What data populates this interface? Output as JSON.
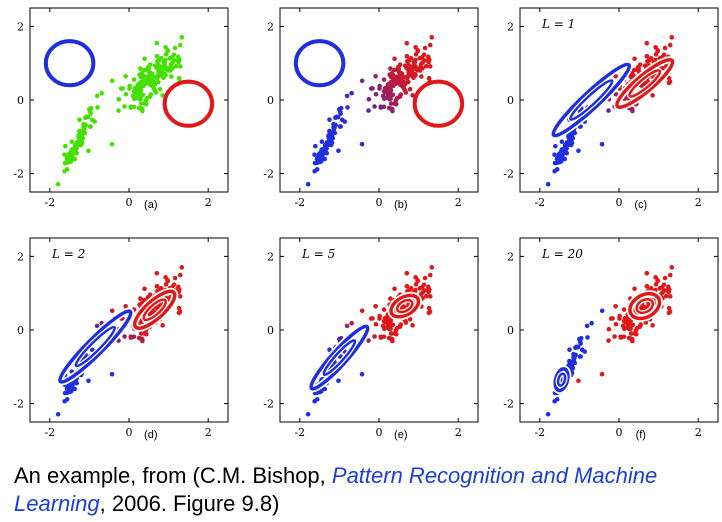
{
  "caption": {
    "prefix": "An example, from (C.M. Bishop, ",
    "book": "Pattern Recognition and Machine Learning",
    "suffix": ", 2006. Figure 9.8)"
  },
  "colors": {
    "green": "#44e000",
    "blue": "#1f2fe0",
    "red": "#e01818"
  },
  "chart_data": [
    {
      "type": "scatter",
      "panel_label": "(a)",
      "annotation": "",
      "xlim": [
        -2.5,
        2.5
      ],
      "ylim": [
        -2.5,
        2.5
      ],
      "xticks": [
        -2,
        0,
        2
      ],
      "yticks": [
        -2,
        0,
        2
      ],
      "points_color": "green",
      "circles": [
        {
          "center": [
            -1.5,
            1.0
          ],
          "radius": 0.6,
          "color": "blue"
        },
        {
          "center": [
            1.5,
            -0.1
          ],
          "radius": 0.6,
          "color": "red"
        }
      ],
      "ellipses": []
    },
    {
      "type": "scatter",
      "panel_label": "(b)",
      "annotation": "",
      "xlim": [
        -2.5,
        2.5
      ],
      "ylim": [
        -2.5,
        2.5
      ],
      "xticks": [
        -2,
        0,
        2
      ],
      "yticks": [
        -2,
        0,
        2
      ],
      "points_color": "responsibility",
      "circles": [
        {
          "center": [
            -1.5,
            1.0
          ],
          "radius": 0.6,
          "color": "blue"
        },
        {
          "center": [
            1.5,
            -0.1
          ],
          "radius": 0.6,
          "color": "red"
        }
      ],
      "ellipses": []
    },
    {
      "type": "scatter",
      "panel_label": "(c)",
      "annotation": "L = 1",
      "xlim": [
        -2.5,
        2.5
      ],
      "ylim": [
        -2.5,
        2.5
      ],
      "xticks": [
        -2,
        0,
        2
      ],
      "yticks": [
        -2,
        0,
        2
      ],
      "points_color": "responsibility",
      "circles": [],
      "ellipses": [
        {
          "center": [
            -0.7,
            0.0
          ],
          "rx": 1.3,
          "ry": 0.22,
          "angle": 43,
          "color": "blue"
        },
        {
          "center": [
            0.65,
            0.45
          ],
          "rx": 0.9,
          "ry": 0.22,
          "angle": 40,
          "color": "red"
        }
      ]
    },
    {
      "type": "scatter",
      "panel_label": "(d)",
      "annotation": "L = 2",
      "xlim": [
        -2.5,
        2.5
      ],
      "ylim": [
        -2.5,
        2.5
      ],
      "xticks": [
        -2,
        0,
        2
      ],
      "yticks": [
        -2,
        0,
        2
      ],
      "points_color": "responsibility",
      "circles": [],
      "ellipses": [
        {
          "center": [
            -0.85,
            -0.45
          ],
          "rx": 1.25,
          "ry": 0.22,
          "angle": 45,
          "color": "blue"
        },
        {
          "center": [
            0.65,
            0.55
          ],
          "rx": 0.65,
          "ry": 0.24,
          "angle": 42,
          "color": "red"
        }
      ]
    },
    {
      "type": "scatter",
      "panel_label": "(e)",
      "annotation": "L = 5",
      "xlim": [
        -2.5,
        2.5
      ],
      "ylim": [
        -2.5,
        2.5
      ],
      "xticks": [
        -2,
        0,
        2
      ],
      "yticks": [
        -2,
        0,
        2
      ],
      "points_color": "responsibility",
      "circles": [],
      "ellipses": [
        {
          "center": [
            -1.0,
            -0.75
          ],
          "rx": 1.05,
          "ry": 0.2,
          "angle": 48,
          "color": "blue"
        },
        {
          "center": [
            0.65,
            0.65
          ],
          "rx": 0.38,
          "ry": 0.24,
          "angle": 30,
          "color": "red"
        }
      ]
    },
    {
      "type": "scatter",
      "panel_label": "(f)",
      "annotation": "L = 20",
      "xlim": [
        -2.5,
        2.5
      ],
      "ylim": [
        -2.5,
        2.5
      ],
      "xticks": [
        -2,
        0,
        2
      ],
      "yticks": [
        -2,
        0,
        2
      ],
      "points_color": "cluster",
      "circles": [],
      "ellipses": [
        {
          "center": [
            -1.45,
            -1.35
          ],
          "rx": 0.28,
          "ry": 0.16,
          "angle": 75,
          "color": "blue"
        },
        {
          "center": [
            0.65,
            0.65
          ],
          "rx": 0.4,
          "ry": 0.3,
          "angle": 30,
          "color": "red"
        }
      ]
    }
  ]
}
